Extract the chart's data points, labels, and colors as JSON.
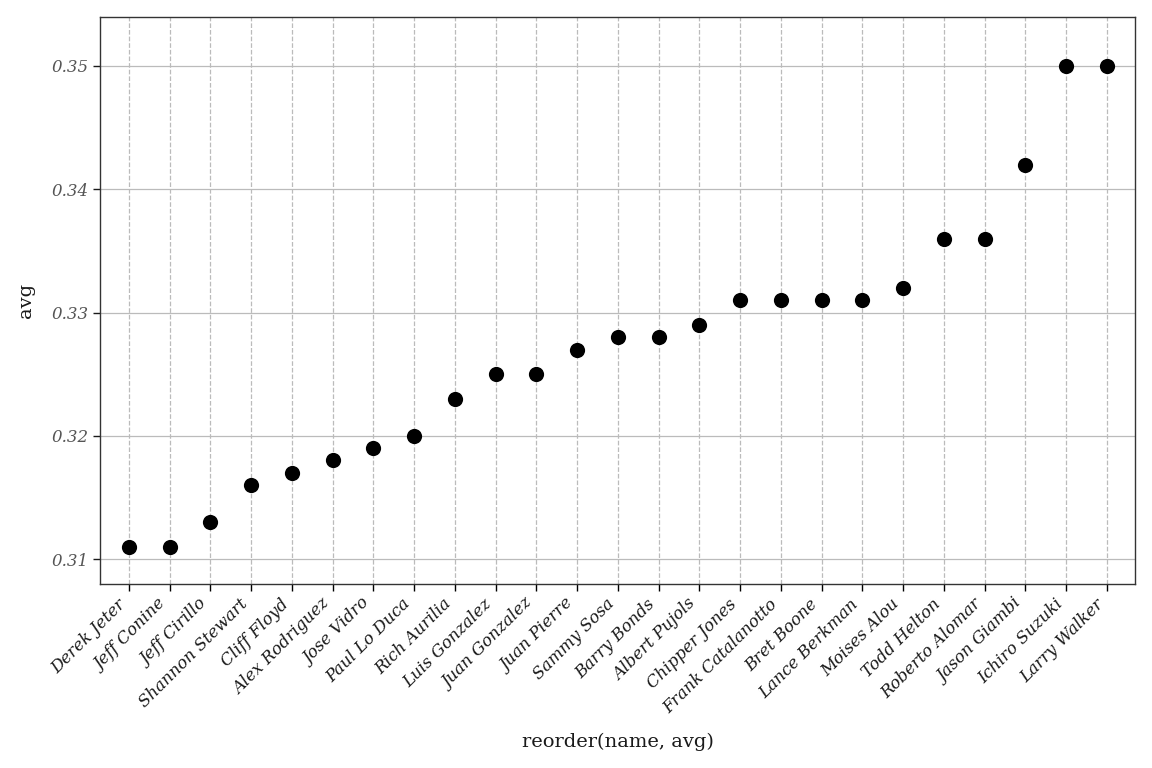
{
  "names": [
    "Derek Jeter",
    "Jeff Conine",
    "Jeff Cirillo",
    "Shannon Stewart",
    "Cliff Floyd",
    "Alex Rodriguez",
    "Jose Vidro",
    "Paul Lo Duca",
    "Rich Aurilia",
    "Luis Gonzalez",
    "Juan Gonzalez",
    "Juan Pierre",
    "Sammy Sosa",
    "Barry Bonds",
    "Albert Pujols",
    "Chipper Jones",
    "Frank Catalanotto",
    "Bret Boone",
    "Lance Berkman",
    "Moises Alou",
    "Todd Helton",
    "Roberto Alomar",
    "Jason Giambi",
    "Ichiro Suzuki",
    "Larry Walker"
  ],
  "values": [
    0.311,
    0.311,
    0.313,
    0.316,
    0.317,
    0.318,
    0.319,
    0.32,
    0.323,
    0.325,
    0.325,
    0.327,
    0.328,
    0.328,
    0.329,
    0.331,
    0.331,
    0.331,
    0.331,
    0.332,
    0.336,
    0.336,
    0.342,
    0.35,
    0.35
  ],
  "xlabel": "reorder(name, avg)",
  "ylabel": "avg",
  "ylim": [
    0.308,
    0.354
  ],
  "yticks": [
    0.31,
    0.32,
    0.33,
    0.34,
    0.35
  ],
  "dot_color": "#000000",
  "dot_size": 120,
  "background_color": "#ffffff",
  "grid_color": "#bbbbbb",
  "xlabel_fontsize": 14,
  "ylabel_fontsize": 14,
  "tick_fontsize": 12,
  "spine_color": "#333333"
}
